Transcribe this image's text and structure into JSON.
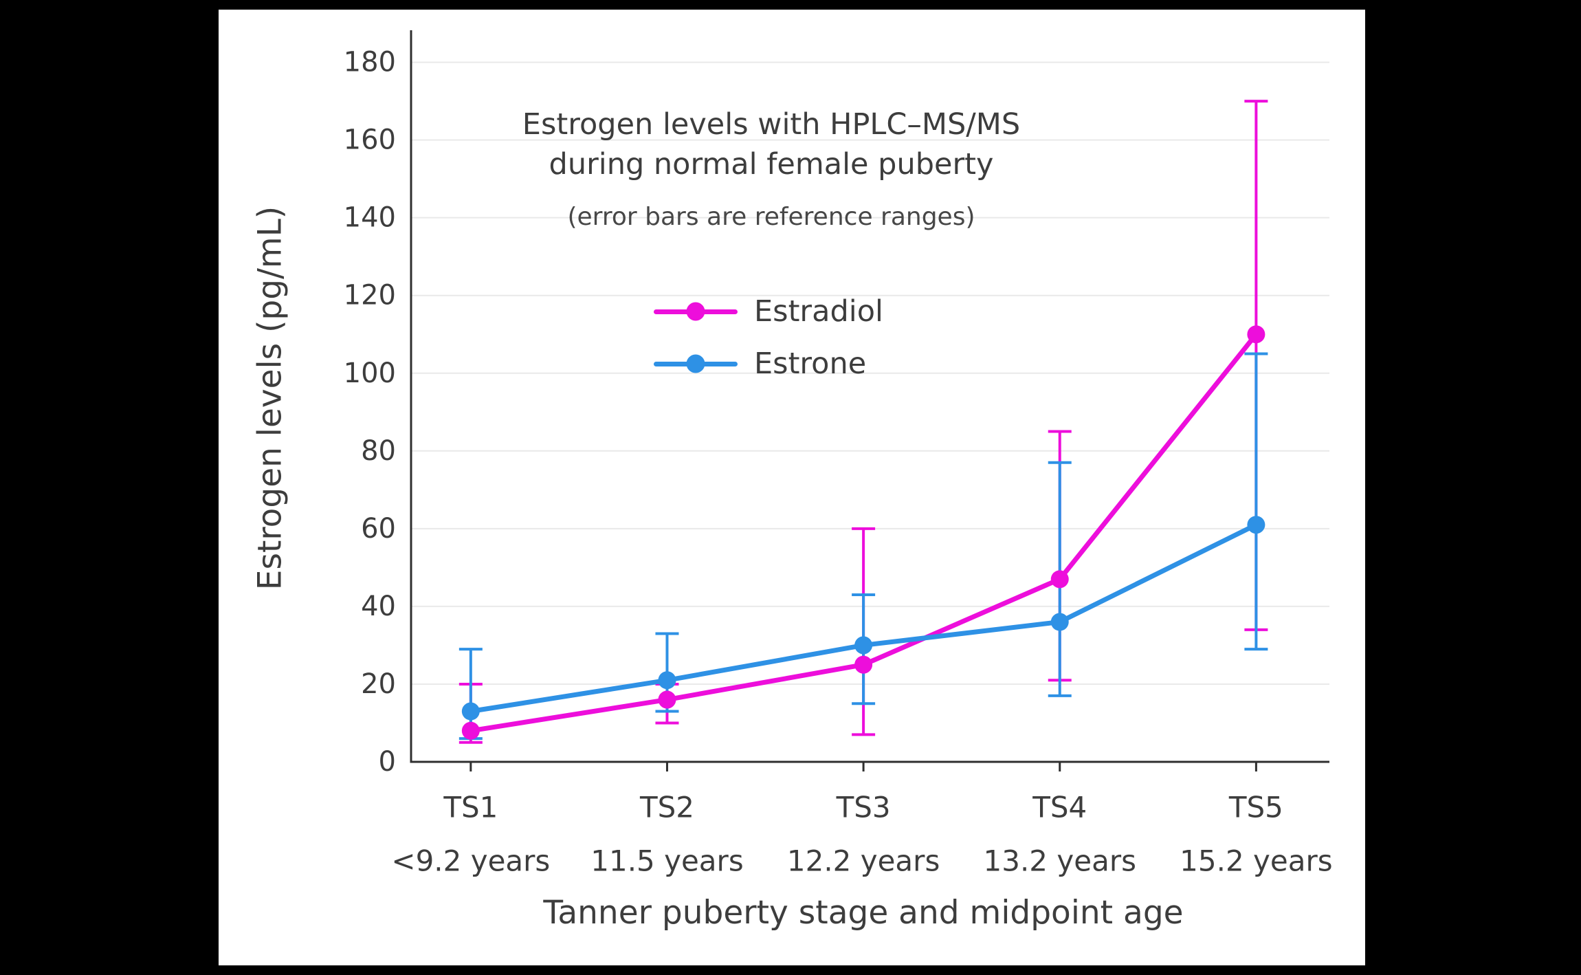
{
  "page": {
    "background": "#000000",
    "panel_background": "#ffffff"
  },
  "chart_data": {
    "type": "line",
    "error_bars": true,
    "title_lines": [
      "Estrogen levels with HPLC–MS/MS",
      "during normal female puberty"
    ],
    "subtitle": "(error bars are reference ranges)",
    "xlabel": "Tanner puberty stage and midpoint age",
    "ylabel": "Estrogen levels (pg/mL)",
    "categories": [
      "TS1",
      "TS2",
      "TS3",
      "TS4",
      "TS5"
    ],
    "category_sublabels": [
      "<9.2 years",
      "11.5 years",
      "12.2 years",
      "13.2 years",
      "15.2 years"
    ],
    "ylim": [
      0,
      187
    ],
    "yticks": [
      0,
      20,
      40,
      60,
      80,
      100,
      120,
      140,
      160,
      180
    ],
    "grid": true,
    "grid_color": "#e9e9e9",
    "axis_color": "#2f2f2f",
    "text_color": "#3d3d3d",
    "legend_position": "inside-upper-left",
    "series": [
      {
        "name": "Estradiol",
        "color": "#ED0EDB",
        "values": [
          8,
          16,
          25,
          47,
          110
        ],
        "range_low": [
          5,
          10,
          7,
          21,
          34
        ],
        "range_high": [
          20,
          20,
          60,
          85,
          170
        ]
      },
      {
        "name": "Estrone",
        "color": "#2E91E5",
        "values": [
          13,
          21,
          30,
          36,
          61
        ],
        "range_low": [
          6,
          13,
          15,
          17,
          29
        ],
        "range_high": [
          29,
          33,
          43,
          77,
          105
        ]
      }
    ]
  }
}
